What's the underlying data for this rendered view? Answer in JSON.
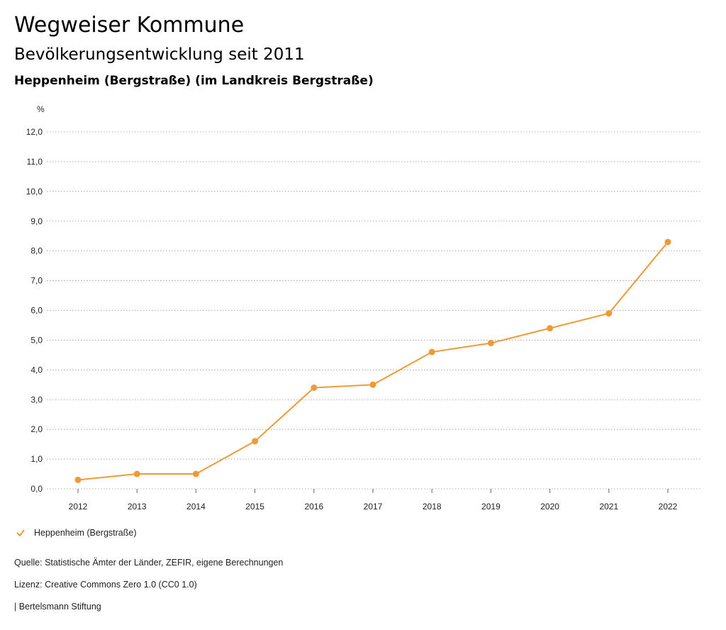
{
  "header": {
    "title": "Wegweiser Kommune",
    "subtitle": "Bevölkerungsentwicklung seit 2011",
    "region": "Heppenheim (Bergstraße) (im Landkreis Bergstraße)"
  },
  "chart_data": {
    "type": "line",
    "ylabel": "%",
    "ylim": [
      0,
      12
    ],
    "yticks": [
      "0,0",
      "1,0",
      "2,0",
      "3,0",
      "4,0",
      "5,0",
      "6,0",
      "7,0",
      "8,0",
      "9,0",
      "10,0",
      "11,0",
      "12,0"
    ],
    "x": [
      "2012",
      "2013",
      "2014",
      "2015",
      "2016",
      "2017",
      "2018",
      "2019",
      "2020",
      "2021",
      "2022"
    ],
    "series": [
      {
        "name": "Heppenheim (Bergstraße)",
        "color": "#f09a36",
        "values": [
          0.3,
          0.5,
          0.5,
          1.6,
          3.4,
          3.5,
          4.6,
          4.9,
          5.4,
          5.9,
          8.3
        ]
      }
    ],
    "grid": true,
    "legend": "bottom-left"
  },
  "footer": {
    "source": "Quelle: Statistische Ämter der Länder, ZEFIR, eigene Berechnungen",
    "license": "Lizenz: Creative Commons Zero 1.0 (CC0 1.0)",
    "publisher": "| Bertelsmann Stiftung"
  }
}
